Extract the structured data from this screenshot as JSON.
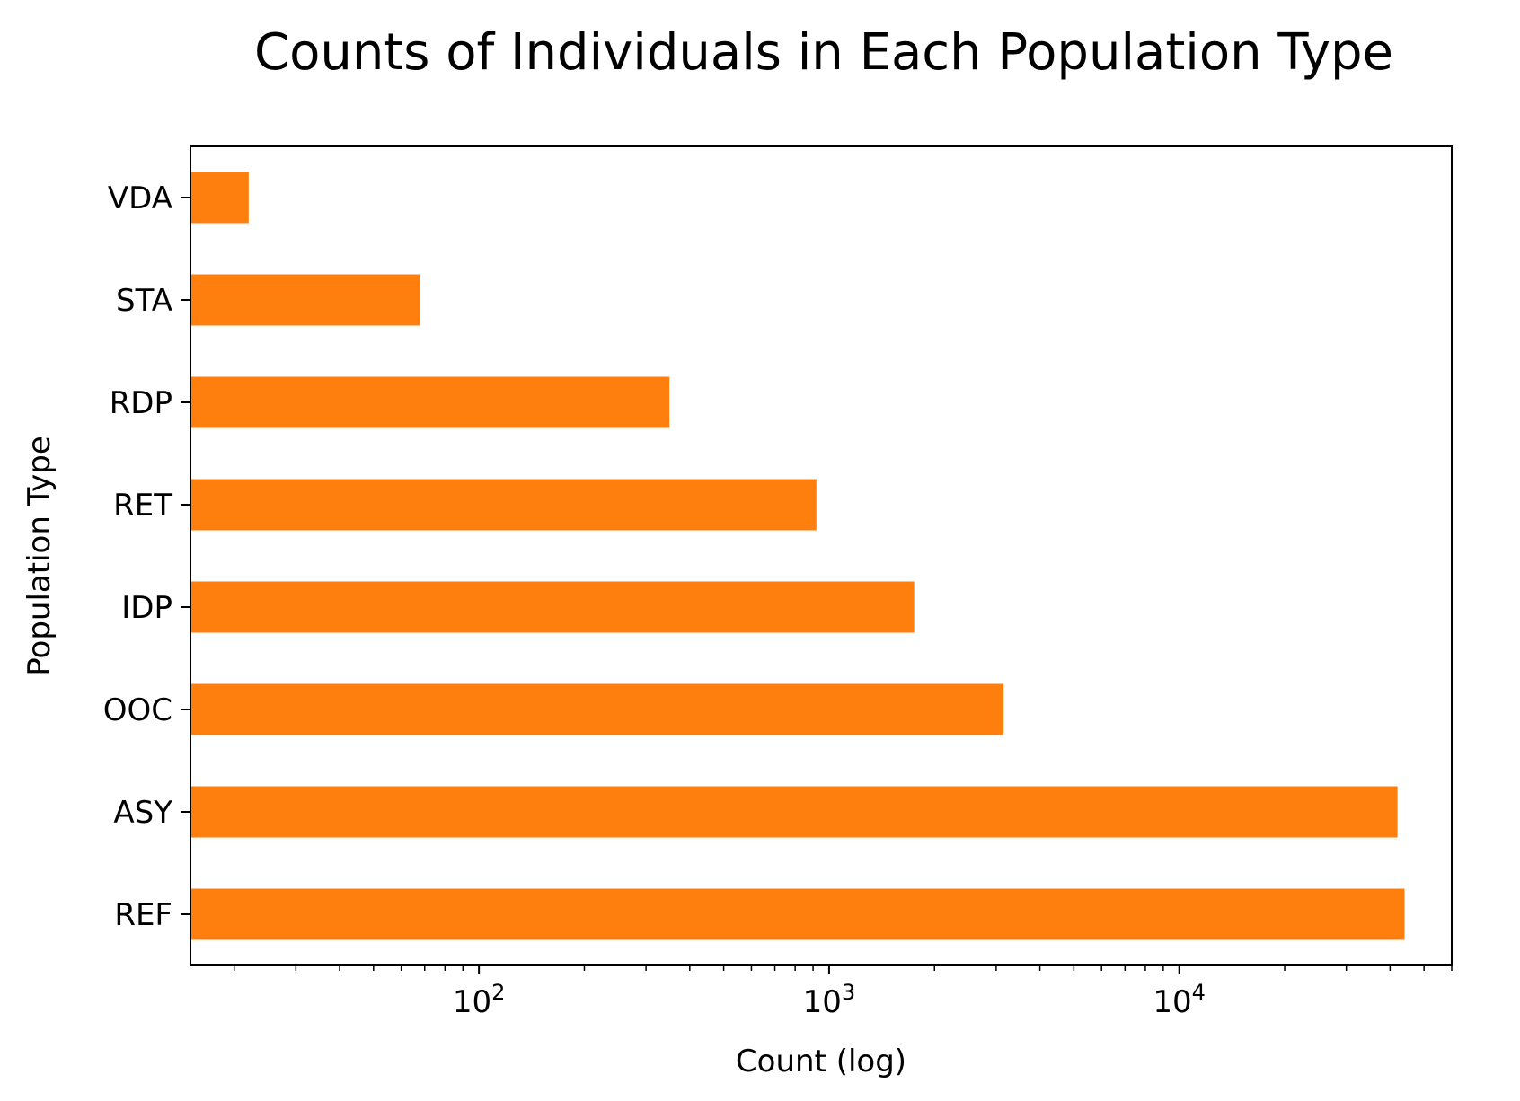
{
  "chart_data": {
    "type": "bar",
    "orientation": "horizontal",
    "title": "Counts of Individuals in Each Population Type",
    "xlabel": "Count (log)",
    "ylabel": "Population Type",
    "xscale": "log",
    "xlim": [
      15,
      60000
    ],
    "x_ticks": [
      {
        "base": "10",
        "exp": "2",
        "value": 100
      },
      {
        "base": "10",
        "exp": "3",
        "value": 1000
      },
      {
        "base": "10",
        "exp": "4",
        "value": 10000
      }
    ],
    "categories": [
      "VDA",
      "STA",
      "RDP",
      "RET",
      "IDP",
      "OOC",
      "ASY",
      "REF"
    ],
    "values": [
      22,
      68,
      350,
      920,
      1750,
      3150,
      42000,
      44000
    ],
    "bar_color": "#ff7f0e",
    "grid": false,
    "legend": "none"
  }
}
